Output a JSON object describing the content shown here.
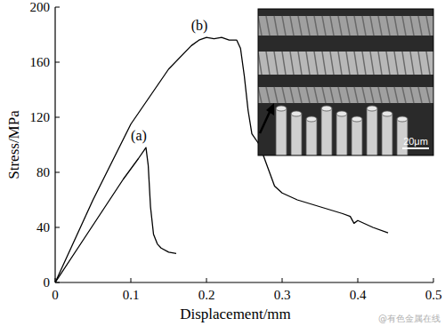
{
  "chart_data": {
    "type": "line",
    "x_label": "Displacement/mm",
    "y_label": "Stress/MPa",
    "xlim": [
      0,
      0.5
    ],
    "ylim": [
      0,
      200
    ],
    "xticks": [
      0,
      0.1,
      0.2,
      0.3,
      0.4,
      0.5
    ],
    "yticks": [
      0,
      40,
      80,
      120,
      160,
      200
    ],
    "grid": false,
    "series": [
      {
        "name": "(a)",
        "color": "#000000",
        "x": [
          0,
          0.03,
          0.06,
          0.09,
          0.11,
          0.12,
          0.123,
          0.126,
          0.13,
          0.135,
          0.14,
          0.15,
          0.16
        ],
        "values": [
          0,
          25,
          50,
          75,
          90,
          98,
          85,
          55,
          35,
          28,
          25,
          22,
          21
        ]
      },
      {
        "name": "(b)",
        "color": "#000000",
        "x": [
          0,
          0.05,
          0.1,
          0.15,
          0.18,
          0.19,
          0.2,
          0.21,
          0.22,
          0.23,
          0.24,
          0.245,
          0.25,
          0.255,
          0.26,
          0.27,
          0.28,
          0.29,
          0.3,
          0.32,
          0.35,
          0.38,
          0.39,
          0.395,
          0.4,
          0.42,
          0.44
        ],
        "values": [
          0,
          60,
          115,
          155,
          172,
          176,
          178,
          177,
          178,
          176,
          176,
          170,
          150,
          125,
          108,
          100,
          85,
          70,
          65,
          60,
          55,
          50,
          48,
          43,
          45,
          40,
          36
        ]
      }
    ],
    "inset": {
      "scale_label": "20μm"
    },
    "watermark": "@有色金属在线"
  }
}
